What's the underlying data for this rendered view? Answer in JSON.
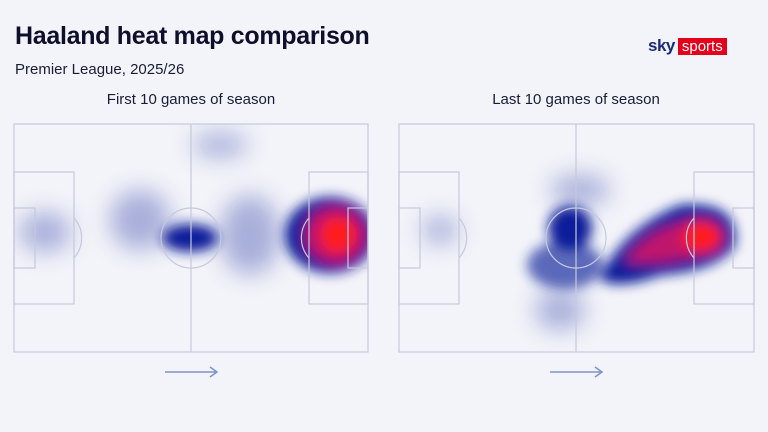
{
  "header": {
    "title": "Haaland heat map comparison",
    "subtitle": "Premier League, 2025/26"
  },
  "logo": {
    "sky": "sky",
    "sports": "sports"
  },
  "panels": [
    {
      "label": "First 10 games of season"
    },
    {
      "label": "Last 10 games of season"
    }
  ],
  "colors": {
    "low": "#1a2ea0",
    "high": "#ff1a1a",
    "pitch_lines": "#c5c9dc",
    "arrow": "#7f92c8"
  }
}
